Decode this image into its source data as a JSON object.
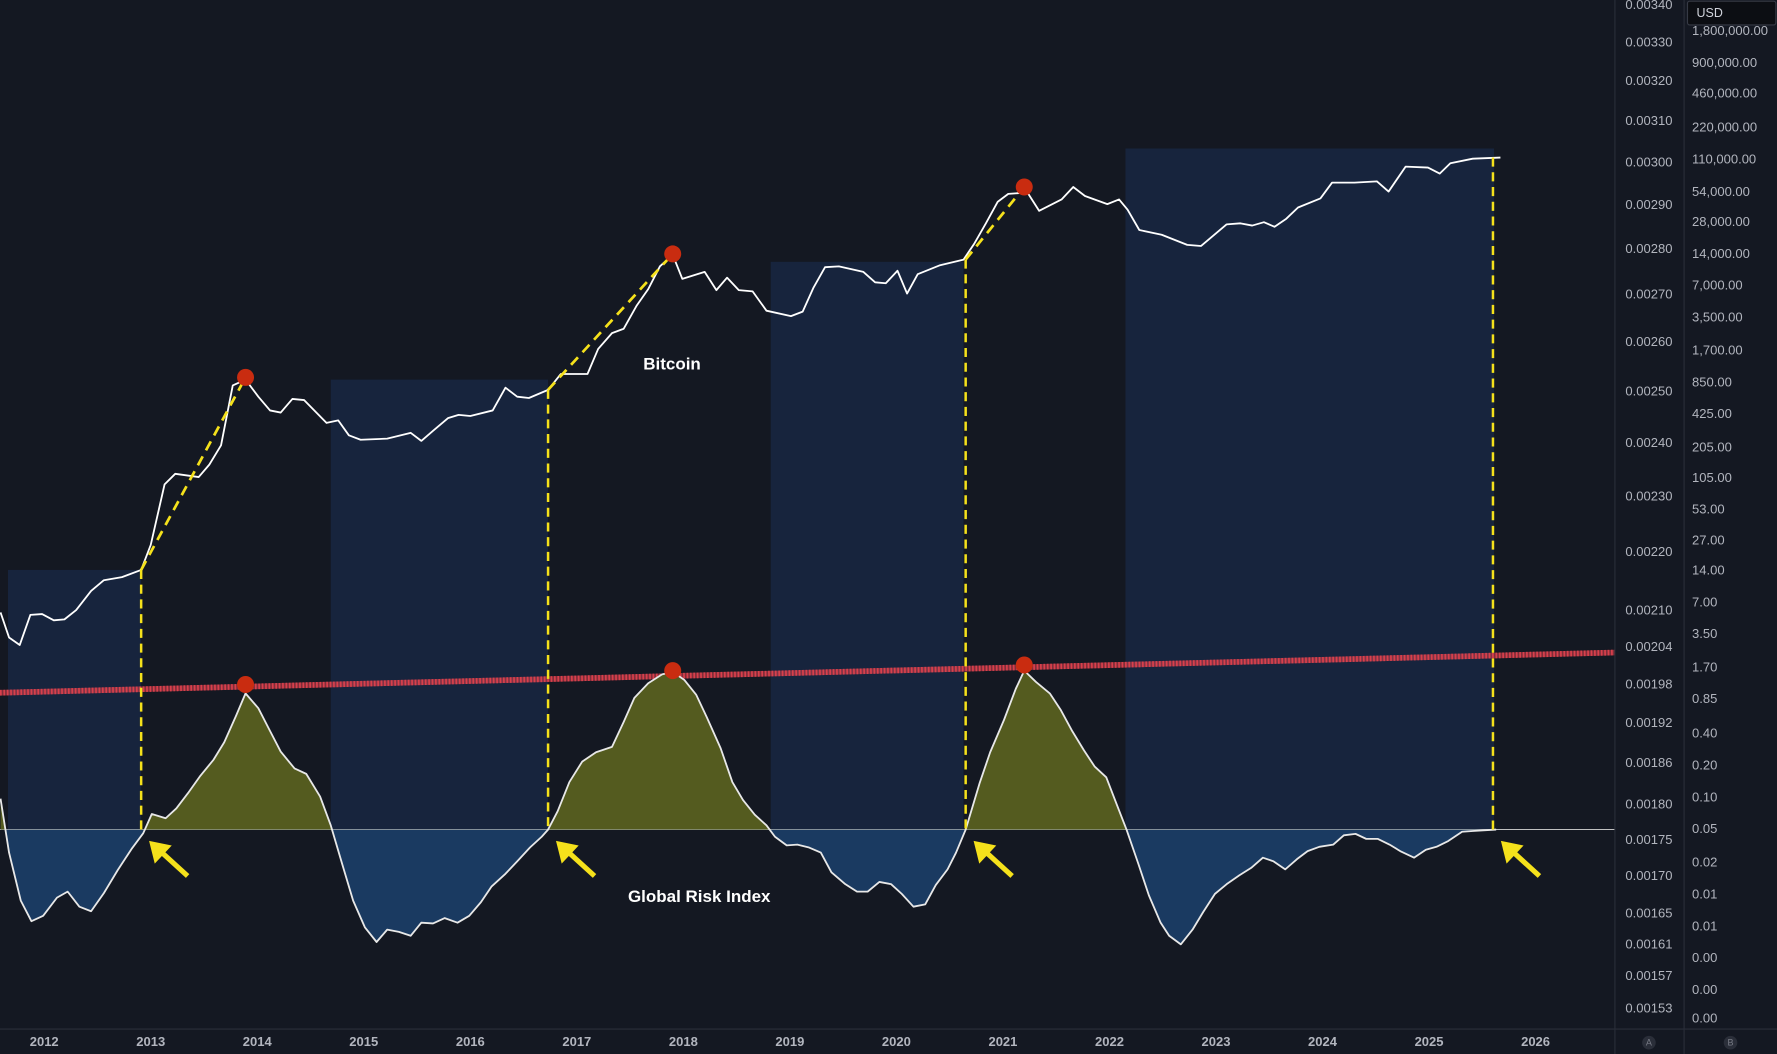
{
  "chart_data": {
    "type": "line",
    "currency": "USD",
    "scale_buttons": [
      "A",
      "B"
    ],
    "xlim": [
      2011.585,
      2026.745
    ],
    "xticks": [
      2012,
      2013,
      2014,
      2015,
      2016,
      2017,
      2018,
      2019,
      2020,
      2021,
      2022,
      2023,
      2024,
      2025,
      2026
    ],
    "log_y": true,
    "ylim": [
      0.001506,
      0.003415
    ],
    "yticks": [
      {
        "value": 0.0034,
        "label": "0.00340"
      },
      {
        "value": 0.0033,
        "label": "0.00330"
      },
      {
        "value": 0.0032,
        "label": "0.00320"
      },
      {
        "value": 0.0031,
        "label": "0.00310"
      },
      {
        "value": 0.003,
        "label": "0.00300"
      },
      {
        "value": 0.0029,
        "label": "0.00290"
      },
      {
        "value": 0.0028,
        "label": "0.00280"
      },
      {
        "value": 0.0027,
        "label": "0.00270"
      },
      {
        "value": 0.0026,
        "label": "0.00260"
      },
      {
        "value": 0.0025,
        "label": "0.00250"
      },
      {
        "value": 0.0024,
        "label": "0.00240"
      },
      {
        "value": 0.0023,
        "label": "0.00230"
      },
      {
        "value": 0.0022,
        "label": "0.00220"
      },
      {
        "value": 0.0021,
        "label": "0.00210"
      },
      {
        "value": 0.00204,
        "label": "0.00204"
      },
      {
        "value": 0.00198,
        "label": "0.00198"
      },
      {
        "value": 0.00192,
        "label": "0.00192"
      },
      {
        "value": 0.00186,
        "label": "0.00186"
      },
      {
        "value": 0.0018,
        "label": "0.00180"
      },
      {
        "value": 0.00175,
        "label": "0.00175"
      },
      {
        "value": 0.0017,
        "label": "0.00170"
      },
      {
        "value": 0.00165,
        "label": "0.00165"
      },
      {
        "value": 0.00161,
        "label": "0.00161"
      },
      {
        "value": 0.00157,
        "label": "0.00157"
      },
      {
        "value": 0.00153,
        "label": "0.00153"
      }
    ],
    "log_y2": true,
    "y2lim": [
      0.000647,
      3586000
    ],
    "y2ticks": [
      {
        "value": 1800000,
        "label": "1,800,000.00"
      },
      {
        "value": 900000,
        "label": "900,000.00"
      },
      {
        "value": 460000,
        "label": "460,000.00"
      },
      {
        "value": 220000,
        "label": "220,000.00"
      },
      {
        "value": 110000,
        "label": "110,000.00"
      },
      {
        "value": 54000,
        "label": "54,000.00"
      },
      {
        "value": 28000,
        "label": "28,000.00"
      },
      {
        "value": 14000,
        "label": "14,000.00"
      },
      {
        "value": 7000,
        "label": "7,000.00"
      },
      {
        "value": 3500,
        "label": "3,500.00"
      },
      {
        "value": 1700,
        "label": "1,700.00"
      },
      {
        "value": 850,
        "label": "850.00"
      },
      {
        "value": 425,
        "label": "425.00"
      },
      {
        "value": 205,
        "label": "205.00"
      },
      {
        "value": 105,
        "label": "105.00"
      },
      {
        "value": 53,
        "label": "53.00"
      },
      {
        "value": 27,
        "label": "27.00"
      },
      {
        "value": 14,
        "label": "14.00"
      },
      {
        "value": 7,
        "label": "7.00"
      },
      {
        "value": 3.5,
        "label": "3.50"
      },
      {
        "value": 1.7,
        "label": "1.70"
      },
      {
        "value": 0.85,
        "label": "0.85"
      },
      {
        "value": 0.4,
        "label": "0.40"
      },
      {
        "value": 0.2,
        "label": "0.20"
      },
      {
        "value": 0.1,
        "label": "0.10"
      },
      {
        "value": 0.05,
        "label": "0.05"
      },
      {
        "value": 0.024,
        "label": "0.02"
      },
      {
        "value": 0.012,
        "label": "0.01"
      },
      {
        "value": 0.006,
        "label": "0.01"
      },
      {
        "value": 0.003,
        "label": "0.00"
      },
      {
        "value": 0.0015,
        "label": "0.00"
      },
      {
        "value": 0.0008,
        "label": "0.00"
      }
    ],
    "baseline": 0.001765,
    "zone_color": "#17243d",
    "zones": [
      {
        "x": [
          2011.66,
          2012.91
        ],
        "top": 14.4
      },
      {
        "x": [
          2014.69,
          2016.73
        ],
        "top": 913
      },
      {
        "x": [
          2018.82,
          2020.63
        ],
        "top": 11900
      },
      {
        "x": [
          2022.15,
          2025.61
        ],
        "top": 140800
      }
    ],
    "signal_color": "#f5e11b",
    "signals": [
      {
        "x": 2012.91,
        "price": 14.4
      },
      {
        "x": 2016.73,
        "price": 730
      },
      {
        "x": 2020.65,
        "price": 12500
      },
      {
        "x": 2025.6,
        "price": 115600
      }
    ],
    "peak_color": "#c92c10",
    "peaks": [
      {
        "x": 2013.89,
        "price": 958,
        "index": 0.001981
      },
      {
        "x": 2017.9,
        "price": 14140,
        "index": 0.002003
      },
      {
        "x": 2021.2,
        "price": 60800,
        "index": 0.002012
      }
    ],
    "trendline_color": "#d8404c",
    "trendline": [
      {
        "x": 2011.585,
        "value": 0.001968
      },
      {
        "x": 2026.745,
        "value": 0.002032
      }
    ],
    "series": [
      {
        "name": "Bitcoin",
        "color": "#ffffff",
        "axis": "y2",
        "x": [
          2011.59,
          2011.67,
          2011.77,
          2011.87,
          2011.98,
          2012.09,
          2012.19,
          2012.3,
          2012.44,
          2012.56,
          2012.73,
          2012.91,
          2013.0,
          2013.13,
          2013.23,
          2013.45,
          2013.55,
          2013.66,
          2013.77,
          2013.89,
          2014.01,
          2014.12,
          2014.22,
          2014.33,
          2014.44,
          2014.65,
          2014.76,
          2014.86,
          2014.97,
          2015.22,
          2015.44,
          2015.54,
          2015.65,
          2015.79,
          2015.89,
          2016.0,
          2016.21,
          2016.33,
          2016.44,
          2016.55,
          2016.73,
          2016.85,
          2017.1,
          2017.2,
          2017.33,
          2017.44,
          2017.56,
          2017.67,
          2017.78,
          2017.9,
          2017.99,
          2018.2,
          2018.31,
          2018.41,
          2018.52,
          2018.65,
          2018.78,
          2019.01,
          2019.12,
          2019.22,
          2019.33,
          2019.46,
          2019.69,
          2019.8,
          2019.9,
          2020.01,
          2020.1,
          2020.2,
          2020.41,
          2020.63,
          2020.73,
          2020.84,
          2020.95,
          2021.05,
          2021.23,
          2021.34,
          2021.55,
          2021.66,
          2021.77,
          2021.98,
          2022.09,
          2022.17,
          2022.28,
          2022.49,
          2022.73,
          2022.86,
          2023.1,
          2023.23,
          2023.34,
          2023.45,
          2023.55,
          2023.66,
          2023.77,
          2023.98,
          2024.09,
          2024.3,
          2024.51,
          2024.62,
          2024.78,
          2024.99,
          2025.1,
          2025.2,
          2025.41,
          2025.67
        ],
        "values": [
          5.7,
          3.3,
          2.8,
          5.4,
          5.5,
          4.8,
          4.9,
          6.0,
          9.1,
          11.5,
          12.3,
          14.4,
          24.8,
          93,
          117,
          109,
          143,
          218,
          803,
          913,
          629,
          466,
          445,
          599,
          584,
          355,
          375,
          271,
          246,
          252,
          286,
          240,
          299,
          394,
          423,
          413,
          466,
          765,
          629,
          611,
          730,
          1032,
          1032,
          1781,
          2514,
          2768,
          4552,
          6560,
          10784,
          13859,
          8213,
          9555,
          6422,
          8424,
          6422,
          6248,
          4101,
          3641,
          4016,
          6733,
          10585,
          10784,
          9555,
          7617,
          7459,
          9797,
          5957,
          9091,
          11056,
          12497,
          17629,
          27550,
          43978,
          52374,
          53945,
          36179,
          46375,
          60821,
          49987,
          41881,
          46375,
          37099,
          23816,
          21486,
          17231,
          16816,
          26934,
          27550,
          26240,
          28243,
          25544,
          30472,
          38900,
          47392,
          66963,
          66963,
          68814,
          55060,
          94900,
          92960,
          81486,
          102150,
          112800,
          115600
        ]
      },
      {
        "name": "Global Risk Index",
        "color": "#e8e8e8",
        "axis": "y",
        "positive_fill": "#545b1f",
        "negative_fill": "#1a3a61",
        "x": [
          2011.59,
          2011.67,
          2011.78,
          2011.88,
          2011.99,
          2012.12,
          2012.22,
          2012.33,
          2012.44,
          2012.56,
          2012.69,
          2012.82,
          2012.93,
          2013.01,
          2013.14,
          2013.24,
          2013.35,
          2013.46,
          2013.59,
          2013.69,
          2013.8,
          2013.89,
          2014.01,
          2014.12,
          2014.22,
          2014.35,
          2014.46,
          2014.59,
          2014.69,
          2014.8,
          2014.9,
          2015.01,
          2015.12,
          2015.22,
          2015.33,
          2015.44,
          2015.54,
          2015.65,
          2015.76,
          2015.88,
          2015.99,
          2016.1,
          2016.2,
          2016.33,
          2016.44,
          2016.56,
          2016.67,
          2016.73,
          2016.82,
          2016.93,
          2017.05,
          2017.18,
          2017.33,
          2017.44,
          2017.54,
          2017.67,
          2017.8,
          2017.9,
          2018.01,
          2018.12,
          2018.22,
          2018.35,
          2018.46,
          2018.56,
          2018.67,
          2018.78,
          2018.86,
          2018.97,
          2019.07,
          2019.18,
          2019.29,
          2019.39,
          2019.52,
          2019.63,
          2019.73,
          2019.84,
          2019.95,
          2020.05,
          2020.16,
          2020.27,
          2020.37,
          2020.48,
          2020.56,
          2020.65,
          2020.78,
          2020.88,
          2021.01,
          2021.12,
          2021.2,
          2021.31,
          2021.44,
          2021.54,
          2021.65,
          2021.76,
          2021.86,
          2021.97,
          2022.07,
          2022.16,
          2022.27,
          2022.37,
          2022.48,
          2022.56,
          2022.67,
          2022.78,
          2022.88,
          2022.99,
          2023.1,
          2023.22,
          2023.33,
          2023.44,
          2023.54,
          2023.65,
          2023.76,
          2023.86,
          2023.97,
          2024.1,
          2024.2,
          2024.31,
          2024.41,
          2024.52,
          2024.63,
          2024.73,
          2024.86,
          2024.97,
          2025.07,
          2025.18,
          2025.31,
          2025.41,
          2025.63
        ],
        "values": [
          0.001809,
          0.001733,
          0.001668,
          0.001641,
          0.001648,
          0.001672,
          0.00168,
          0.00166,
          0.001654,
          0.001678,
          0.001709,
          0.001738,
          0.00176,
          0.001787,
          0.001781,
          0.001795,
          0.001817,
          0.001841,
          0.001866,
          0.001892,
          0.001932,
          0.001967,
          0.001944,
          0.001909,
          0.001878,
          0.001853,
          0.001845,
          0.001812,
          0.001771,
          0.001716,
          0.001668,
          0.001633,
          0.001614,
          0.00163,
          0.001627,
          0.001622,
          0.001639,
          0.001638,
          0.001645,
          0.001639,
          0.001648,
          0.001666,
          0.001687,
          0.001704,
          0.001721,
          0.00174,
          0.001755,
          0.001765,
          0.001791,
          0.001833,
          0.001863,
          0.001877,
          0.001885,
          0.001923,
          0.00196,
          0.001983,
          0.001997,
          0.002001,
          0.001988,
          0.001965,
          0.00193,
          0.001883,
          0.001833,
          0.001807,
          0.001786,
          0.001771,
          0.001755,
          0.001743,
          0.001744,
          0.00174,
          0.001733,
          0.001706,
          0.00169,
          0.00168,
          0.00168,
          0.001693,
          0.00169,
          0.001677,
          0.00166,
          0.001663,
          0.001689,
          0.00171,
          0.001733,
          0.001765,
          0.001831,
          0.001877,
          0.001926,
          0.001974,
          0.002003,
          0.001985,
          0.001967,
          0.001942,
          0.001909,
          0.00188,
          0.001856,
          0.00184,
          0.0018,
          0.001765,
          0.001718,
          0.001675,
          0.001639,
          0.001622,
          0.001611,
          0.00163,
          0.001653,
          0.001677,
          0.00169,
          0.001702,
          0.001712,
          0.001726,
          0.001721,
          0.00171,
          0.001724,
          0.001735,
          0.001741,
          0.001744,
          0.001757,
          0.001759,
          0.001752,
          0.001752,
          0.001744,
          0.001735,
          0.001726,
          0.001737,
          0.001741,
          0.001749,
          0.001762,
          0.001763,
          0.001765
        ]
      }
    ]
  }
}
